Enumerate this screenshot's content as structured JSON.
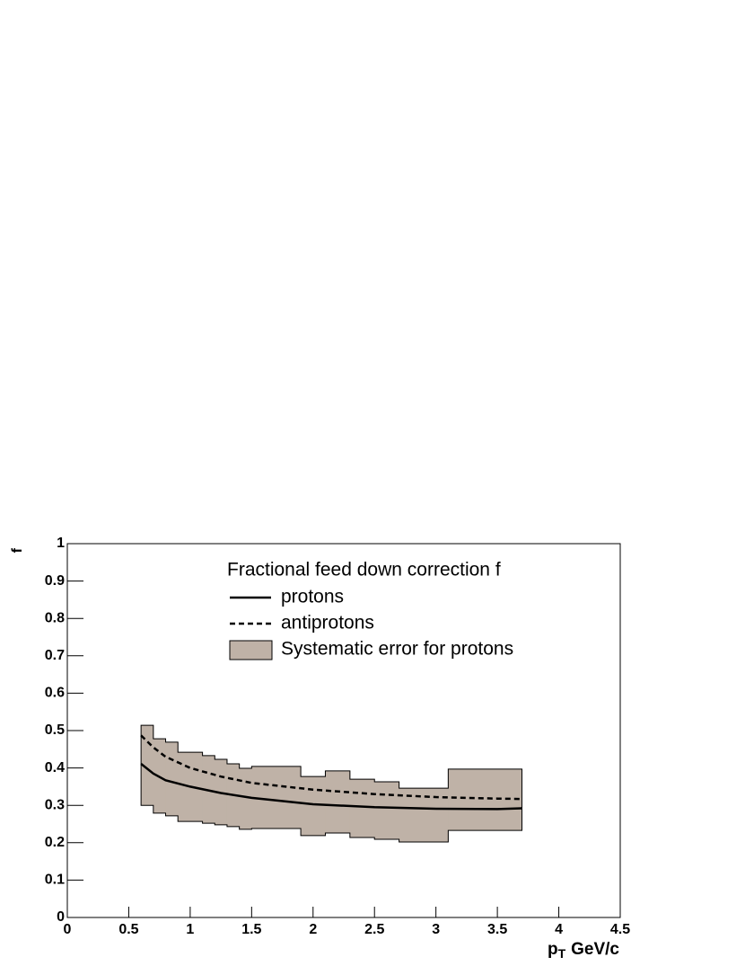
{
  "chart_data": {
    "type": "line",
    "xlabel": {
      "main": "p",
      "sub": "T",
      "rest": "GeV/c"
    },
    "ylabel": "f",
    "legend_title": "Fractional feed down correction f",
    "legend": "top-right",
    "xlim": [
      0,
      4.5
    ],
    "xticks": [
      0,
      0.5,
      1,
      1.5,
      2,
      2.5,
      3,
      3.5,
      4,
      4.5
    ],
    "ylim": [
      0,
      1
    ],
    "yticks": [
      0,
      0.1,
      0.2,
      0.3,
      0.4,
      0.5,
      0.6,
      0.7,
      0.8,
      0.9,
      1
    ],
    "x": [
      0.6,
      0.7,
      0.8,
      1.0,
      1.25,
      1.5,
      2,
      2.5,
      3,
      3.5,
      3.7
    ],
    "series": [
      {
        "name": "protons",
        "color": "#000000",
        "line_style": "solid",
        "values": [
          0.411,
          0.385,
          0.367,
          0.35,
          0.333,
          0.32,
          0.303,
          0.295,
          0.291,
          0.29,
          0.292
        ]
      },
      {
        "name": "antiprotons",
        "color": "#000000",
        "line_style": "dashed",
        "values": [
          0.487,
          0.455,
          0.43,
          0.4,
          0.377,
          0.36,
          0.342,
          0.33,
          0.322,
          0.318,
          0.317
        ]
      }
    ],
    "band": {
      "name": "Systematic error for protons",
      "color": "#bfb2a7",
      "bins": [
        0.6,
        0.7,
        0.8,
        0.9,
        1.1,
        1.2,
        1.3,
        1.4,
        1.5,
        1.9,
        2.1,
        2.3,
        2.5,
        2.7,
        3.1,
        3.7
      ],
      "upper": [
        0.514,
        0.478,
        0.469,
        0.442,
        0.433,
        0.423,
        0.411,
        0.399,
        0.404,
        0.377,
        0.392,
        0.37,
        0.363,
        0.346,
        0.397
      ],
      "lower": [
        0.3,
        0.279,
        0.272,
        0.257,
        0.252,
        0.248,
        0.243,
        0.236,
        0.238,
        0.219,
        0.226,
        0.214,
        0.209,
        0.202,
        0.233
      ]
    }
  }
}
